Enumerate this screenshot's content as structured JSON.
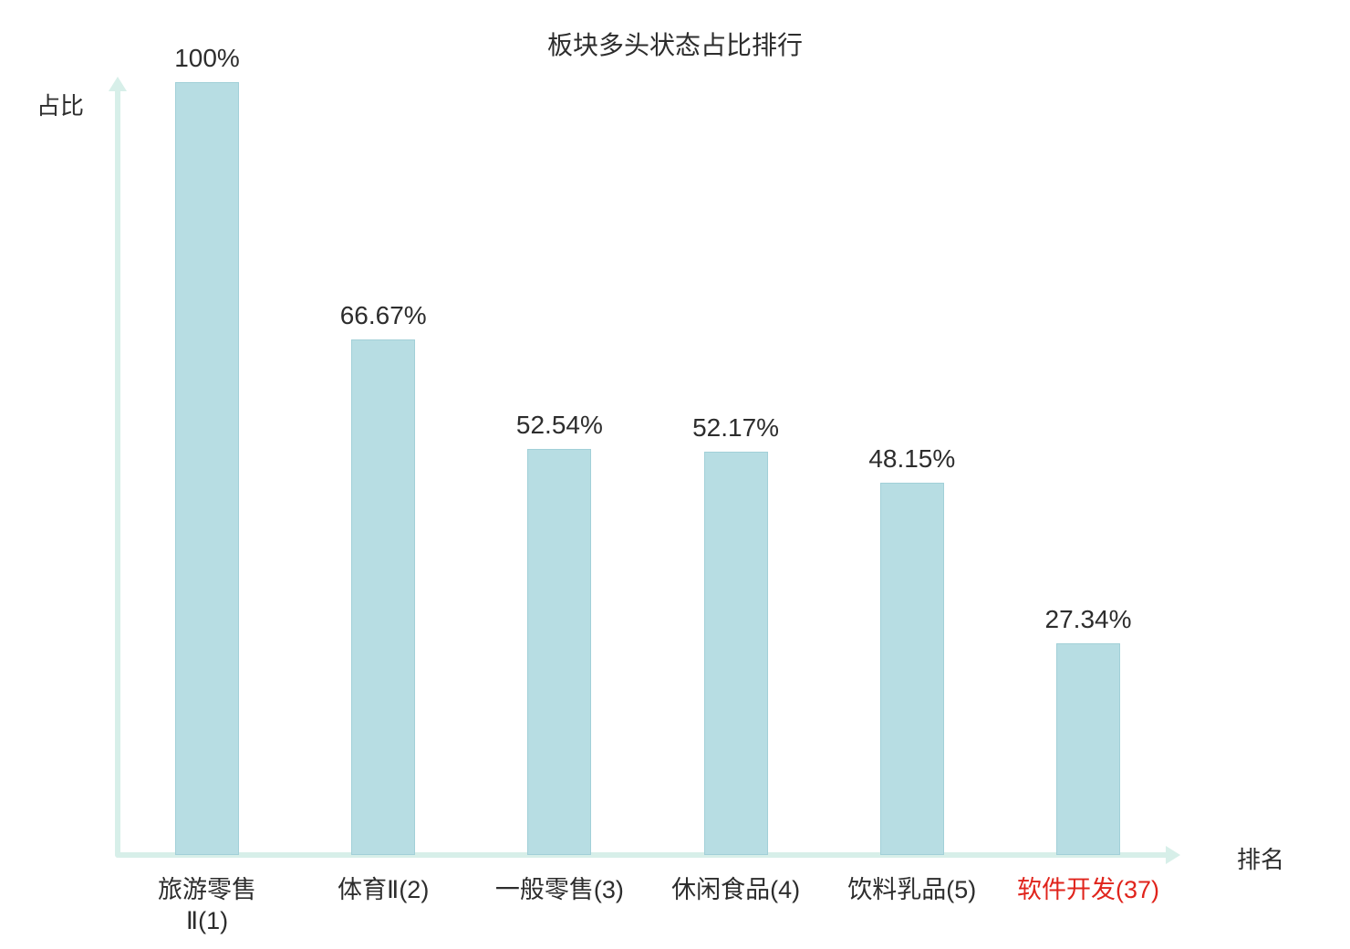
{
  "title": "板块多头状态占比排行",
  "axes": {
    "y_label": "占比",
    "x_label": "排名"
  },
  "colors": {
    "bar_fill": "#b7dde3",
    "bar_border": "#a2d0d8",
    "axis": "#d7efe9",
    "text": "#2d2d2d",
    "highlight": "#e0241c"
  },
  "chart_data": {
    "type": "bar",
    "title": "板块多头状态占比排行",
    "xlabel": "排名",
    "ylabel": "占比",
    "ylim": [
      0,
      100
    ],
    "grid": false,
    "legend": null,
    "categories": [
      "旅游零售Ⅱ(1)",
      "体育Ⅱ(2)",
      "一般零售(3)",
      "休闲食品(4)",
      "饮料乳品(5)",
      "软件开发(37)"
    ],
    "category_lines": [
      [
        "旅游零售",
        "Ⅱ(1)"
      ],
      [
        "体育Ⅱ(2)"
      ],
      [
        "一般零售(3)"
      ],
      [
        "休闲食品(4)"
      ],
      [
        "饮料乳品(5)"
      ],
      [
        "软件开发(37)"
      ]
    ],
    "values": [
      100,
      66.67,
      52.54,
      52.17,
      48.15,
      27.34
    ],
    "value_labels": [
      "100%",
      "66.67%",
      "52.54%",
      "52.17%",
      "48.15%",
      "27.34%"
    ],
    "highlight_index": 5
  }
}
